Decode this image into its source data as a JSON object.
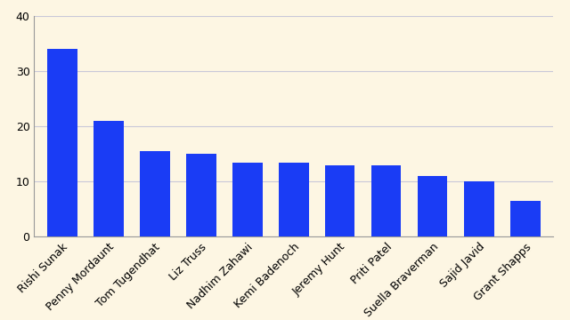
{
  "chart_data": {
    "type": "bar",
    "categories": [
      "Rishi Sunak",
      "Penny Mordaunt",
      "Tom Tugendhat",
      "Liz Truss",
      "Nadhim Zahawi",
      "Kemi Badenoch",
      "Jeremy Hunt",
      "Priti Patel",
      "Suella Braverman",
      "Sajid Javid",
      "Grant Shapps"
    ],
    "values": [
      34,
      21,
      15.5,
      15,
      13.5,
      13.5,
      13,
      13,
      11,
      10,
      6.5
    ],
    "color": "#1a3cf5",
    "ylim": [
      0,
      40
    ],
    "yticks": [
      0,
      10,
      20,
      30,
      40
    ],
    "grid": true
  }
}
